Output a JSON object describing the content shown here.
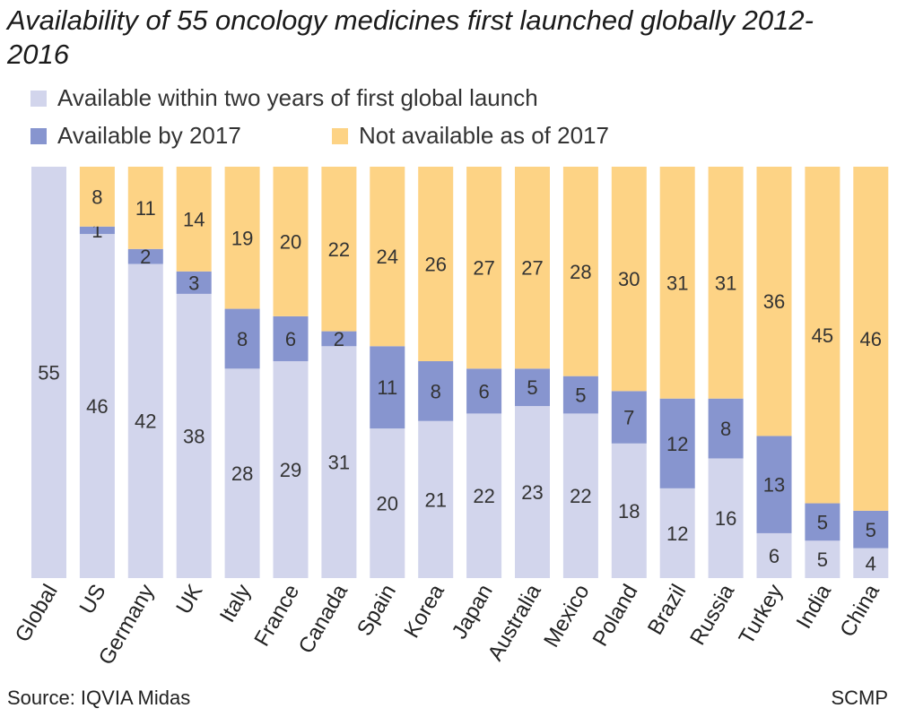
{
  "chart_data": {
    "type": "bar",
    "stacked": true,
    "title": "Availability of 55 oncology medicines first launched globally 2012-2016",
    "categories": [
      "Global",
      "US",
      "Germany",
      "UK",
      "Italy",
      "France",
      "Canada",
      "Spain",
      "Korea",
      "Japan",
      "Australia",
      "Mexico",
      "Poland",
      "Brazil",
      "Russia",
      "Turkey",
      "India",
      "China"
    ],
    "series": [
      {
        "name": "Available within two years of first global launch",
        "color": "#d2d5ec",
        "values": [
          55,
          46,
          42,
          38,
          28,
          29,
          31,
          20,
          21,
          22,
          23,
          22,
          18,
          12,
          16,
          6,
          5,
          4
        ]
      },
      {
        "name": "Available by 2017",
        "color": "#8795cf",
        "values": [
          0,
          1,
          2,
          3,
          8,
          6,
          2,
          11,
          8,
          6,
          5,
          5,
          7,
          12,
          8,
          13,
          5,
          5
        ]
      },
      {
        "name": "Not available as of 2017",
        "color": "#fdd385",
        "values": [
          0,
          8,
          11,
          14,
          19,
          20,
          22,
          24,
          26,
          27,
          27,
          28,
          30,
          31,
          31,
          36,
          45,
          46
        ]
      }
    ],
    "ylim": [
      0,
      55
    ],
    "grid": false,
    "legend_placement": "top-left"
  },
  "source": "Source: IQVIA Midas",
  "credit": "SCMP"
}
